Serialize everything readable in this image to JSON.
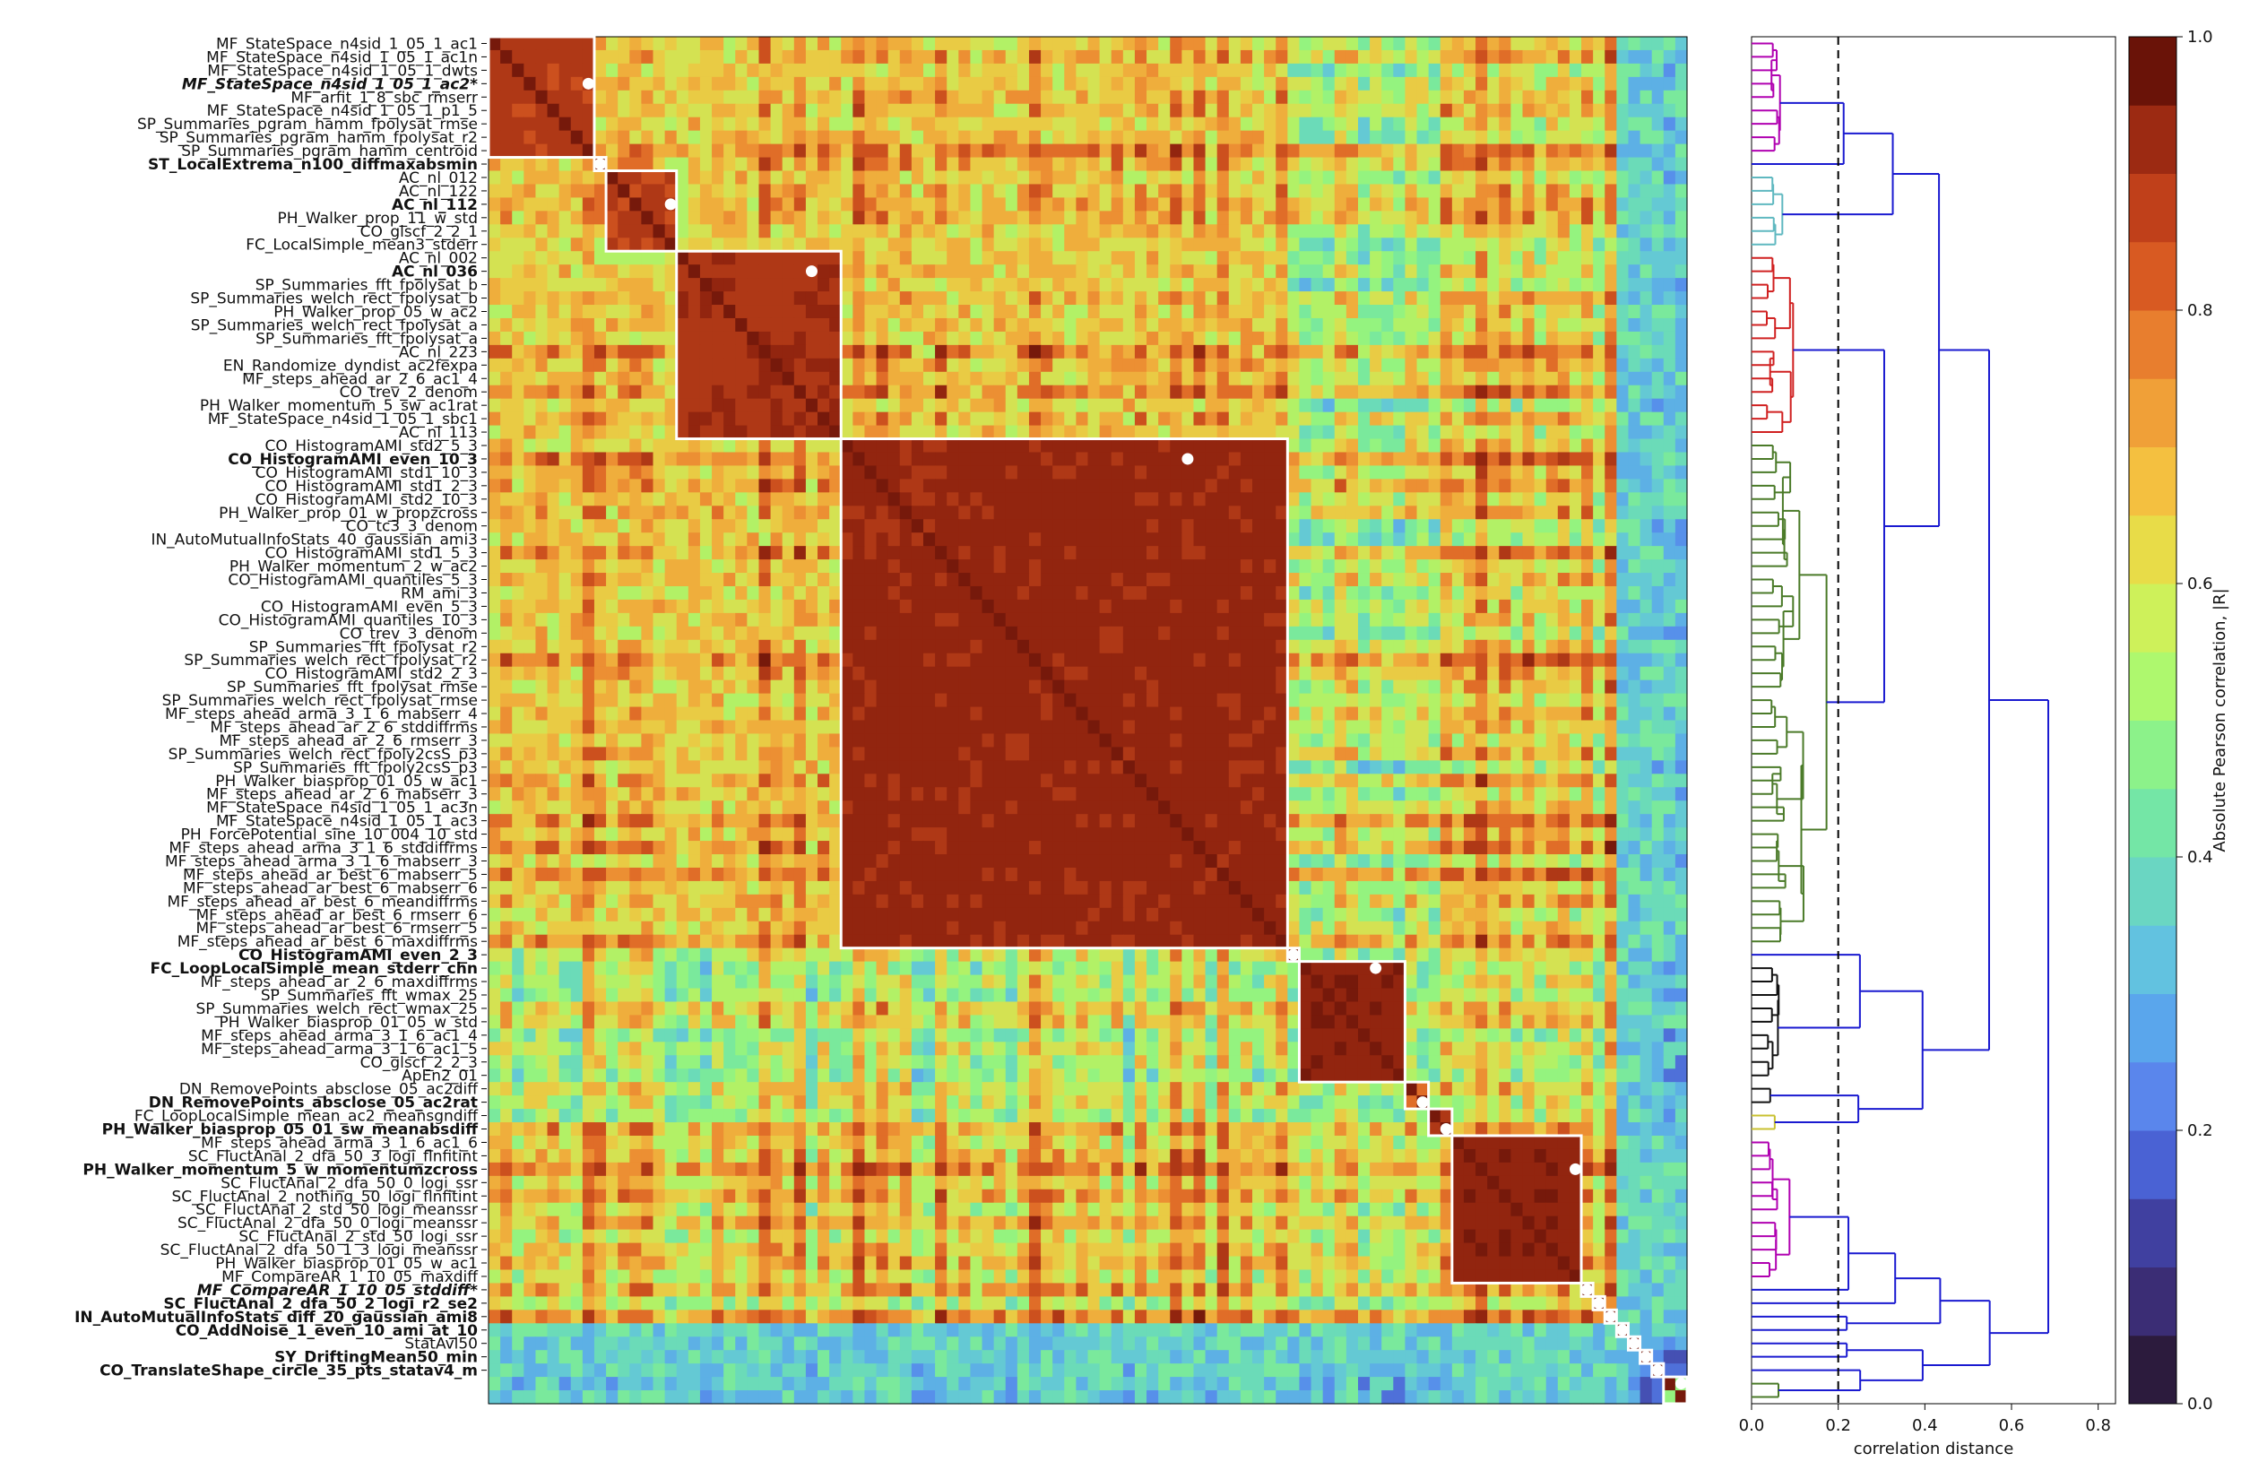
{
  "chart_data": [
    {
      "type": "heatmap",
      "title": "",
      "matrix_size": 102,
      "row_labels": [
        "MF_StateSpace_n4sid_1_05_1_ac1",
        "MF_StateSpace_n4sid_1_05_1_ac1n",
        "MF_StateSpace_n4sid_1_05_1_dwts",
        "MF_StateSpace_n4sid_1_05_1_ac2*",
        "MF_arfit_1_8_sbc_rmserr",
        "MF_StateSpace_n4sid_1_05_1_p1_5",
        "SP_Summaries_pgram_hamm_fpolysat_rmse",
        "SP_Summaries_pgram_hamm_fpolysat_r2",
        "SP_Summaries_pgram_hamm_centroid",
        "ST_LocalExtrema_n100_diffmaxabsmin",
        "AC_nl_012",
        "AC_nl_122",
        "AC_nl_112",
        "PH_Walker_prop_11_w_std",
        "CO_glscf_2_2_1",
        "FC_LocalSimple_mean3_stderr",
        "AC_nl_002",
        "AC_nl_036",
        "SP_Summaries_fft_fpolysat_b",
        "SP_Summaries_welch_rect_fpolysat_b",
        "PH_Walker_prop_05_w_ac2",
        "SP_Summaries_welch_rect_fpolysat_a",
        "SP_Summaries_fft_fpolysat_a",
        "AC_nl_223",
        "EN_Randomize_dyndist_ac2fexpa",
        "MF_steps_ahead_ar_2_6_ac1_4",
        "CO_trev_2_denom",
        "PH_Walker_momentum_5_sw_ac1rat",
        "MF_StateSpace_n4sid_1_05_1_sbc1",
        "AC_nl_113",
        "CO_HistogramAMI_std2_5_3",
        "CO_HistogramAMI_even_10_3",
        "CO_HistogramAMI_std1_10_3",
        "CO_HistogramAMI_std1_2_3",
        "CO_HistogramAMI_std2_10_3",
        "PH_Walker_prop_01_w_propzcross",
        "CO_tc3_3_denom",
        "IN_AutoMutualInfoStats_40_gaussian_ami3",
        "CO_HistogramAMI_std1_5_3",
        "PH_Walker_momentum_2_w_ac2",
        "CO_HistogramAMI_quantiles_5_3",
        "RM_ami_3",
        "CO_HistogramAMI_even_5_3",
        "CO_HistogramAMI_quantiles_10_3",
        "CO_trev_3_denom",
        "SP_Summaries_fft_fpolysat_r2",
        "SP_Summaries_welch_rect_fpolysat_r2",
        "CO_HistogramAMI_std2_2_3",
        "SP_Summaries_fft_fpolysat_rmse",
        "SP_Summaries_welch_rect_fpolysat_rmse",
        "MF_steps_ahead_arma_3_1_6_mabserr_4",
        "MF_steps_ahead_ar_2_6_stddiffrms",
        "MF_steps_ahead_ar_2_6_rmserr_3",
        "SP_Summaries_welch_rect_fpoly2csS_p3",
        "SP_Summaries_fft_fpoly2csS_p3",
        "PH_Walker_biasprop_01_05_w_ac1",
        "MF_steps_ahead_ar_2_6_mabserr_3",
        "MF_StateSpace_n4sid_1_05_1_ac3n",
        "MF_StateSpace_n4sid_1_05_1_ac3",
        "PH_ForcePotential_sine_10_004_10_std",
        "MF_steps_ahead_arma_3_1_6_stddiffrms",
        "MF_steps_ahead_arma_3_1_6_mabserr_3",
        "MF_steps_ahead_ar_best_6_mabserr_5",
        "MF_steps_ahead_ar_best_6_mabserr_6",
        "MF_steps_ahead_ar_best_6_meandiffrms",
        "MF_steps_ahead_ar_best_6_rmserr_6",
        "MF_steps_ahead_ar_best_6_rmserr_5",
        "MF_steps_ahead_ar_best_6_maxdiffrms",
        "CO_HistogramAMI_even_2_3",
        "FC_LoopLocalSimple_mean_stderr_chn",
        "MF_steps_ahead_ar_2_6_maxdiffrms",
        "SP_Summaries_fft_wmax_25",
        "SP_Summaries_welch_rect_wmax_25",
        "PH_Walker_biasprop_01_05_w_std",
        "MF_steps_ahead_arma_3_1_6_ac1_4",
        "MF_steps_ahead_arma_3_1_6_ac1_5",
        "CO_glscf_2_2_3",
        "ApEn2_01",
        "DN_RemovePoints_absclose_05_ac2diff",
        "DN_RemovePoints_absclose_05_ac2rat",
        "FC_LoopLocalSimple_mean_ac2_meansgndiff",
        "PH_Walker_biasprop_05_01_sw_meanabsdiff",
        "MF_steps_ahead_arma_3_1_6_ac1_6",
        "SC_FluctAnal_2_dfa_50_3_logi_flnfitint",
        "PH_Walker_momentum_5_w_momentumzcross",
        "SC_FluctAnal_2_dfa_50_0_logi_ssr",
        "SC_FluctAnal_2_nothing_50_logi_flnfitint",
        "SC_FluctAnal_2_std_50_logi_meanssr",
        "SC_FluctAnal_2_dfa_50_0_logi_meanssr",
        "SC_FluctAnal_2_std_50_logi_ssr",
        "SC_FluctAnal_2_dfa_50_1_3_logi_meanssr",
        "PH_Walker_biasprop_01_05_w_ac1",
        "MF_CompareAR_1_10_05_maxdiff",
        "MF_CompareAR_1_10_05_stddiff*",
        "SC_FluctAnal_2_dfa_50_2_logi_r2_se2",
        "IN_AutoMutualInfoStats_diff_20_gaussian_ami8",
        "CO_AddNoise_1_even_10_ami_at_10",
        "StatAvl50",
        "SY_DriftingMean50_min",
        "CO_TranslateShape_circle_35_pts_statav4_m"
      ],
      "bold_rows": [
        3,
        9,
        12,
        17,
        31,
        68,
        69,
        79,
        81,
        84,
        93,
        94,
        95,
        96,
        98,
        99
      ],
      "italic_rows": [
        3,
        93
      ],
      "clusters": [
        {
          "start": 0,
          "end": 8,
          "representative_row": 3
        },
        {
          "start": 9,
          "end": 9,
          "representative_row": 9
        },
        {
          "start": 10,
          "end": 15,
          "representative_row": 12
        },
        {
          "start": 16,
          "end": 29,
          "representative_row": 17
        },
        {
          "start": 30,
          "end": 67,
          "representative_row": 31
        },
        {
          "start": 68,
          "end": 68,
          "representative_row": 68
        },
        {
          "start": 69,
          "end": 77,
          "representative_row": 69
        },
        {
          "start": 78,
          "end": 79,
          "representative_row": 79
        },
        {
          "start": 80,
          "end": 81,
          "representative_row": 81
        },
        {
          "start": 82,
          "end": 92,
          "representative_row": 84
        },
        {
          "start": 93,
          "end": 93,
          "representative_row": 93
        },
        {
          "start": 94,
          "end": 94,
          "representative_row": 94
        },
        {
          "start": 95,
          "end": 95,
          "representative_row": 95
        },
        {
          "start": 96,
          "end": 96,
          "representative_row": 96
        },
        {
          "start": 97,
          "end": 97,
          "representative_row": 97
        },
        {
          "start": 98,
          "end": 98,
          "representative_row": 98
        },
        {
          "start": 99,
          "end": 99,
          "representative_row": 99
        },
        {
          "start": 100,
          "end": 101,
          "representative_row": 100
        }
      ],
      "value_range": [
        0.0,
        1.0
      ],
      "colorbar": {
        "label": "Absolute Pearson correlation, |R|",
        "ticks": [
          0.0,
          0.2,
          0.4,
          0.6,
          0.8,
          1.0
        ],
        "tick_labels": [
          "0.0",
          "0.2",
          "0.4",
          "0.6",
          "0.8",
          "1.0"
        ],
        "levels": 20,
        "colors": [
          "#2c1b3d",
          "#3b2d75",
          "#4040a0",
          "#4a62d4",
          "#5a86ec",
          "#5aa6ec",
          "#62c2e0",
          "#6ad6c2",
          "#74e6a6",
          "#8cf28a",
          "#aef86e",
          "#cef15a",
          "#e8dc48",
          "#f4c040",
          "#f0a038",
          "#e87e2e",
          "#d85a22",
          "#c0401a",
          "#9c2a12",
          "#6a1308"
        ]
      },
      "strong_blocks_approx_r": [
        0.9,
        0.7,
        0.9,
        0.92,
        0.95,
        0.5,
        0.96,
        0.8,
        0.9,
        0.96,
        0.5,
        0.9,
        0.5,
        0.9,
        0.5,
        0.5,
        0.9,
        0.5
      ]
    },
    {
      "type": "dendrogram",
      "xlabel": "correlation distance",
      "x_ticks": [
        "0.0",
        "0.2",
        "0.4",
        "0.6",
        "0.8"
      ],
      "xlim": [
        0.0,
        0.84
      ],
      "threshold": 0.2,
      "threshold_style": "dashed black vertical line",
      "cluster_colors": [
        "#b000b0",
        "#5fb8c0",
        "#d02020",
        "#4a7a28",
        "#111111",
        "#c8c030",
        "#b000b0",
        "#5fb8c0",
        "#d02020",
        "#4a7a28"
      ],
      "link_color_above_threshold": "#1a1ad0"
    }
  ]
}
